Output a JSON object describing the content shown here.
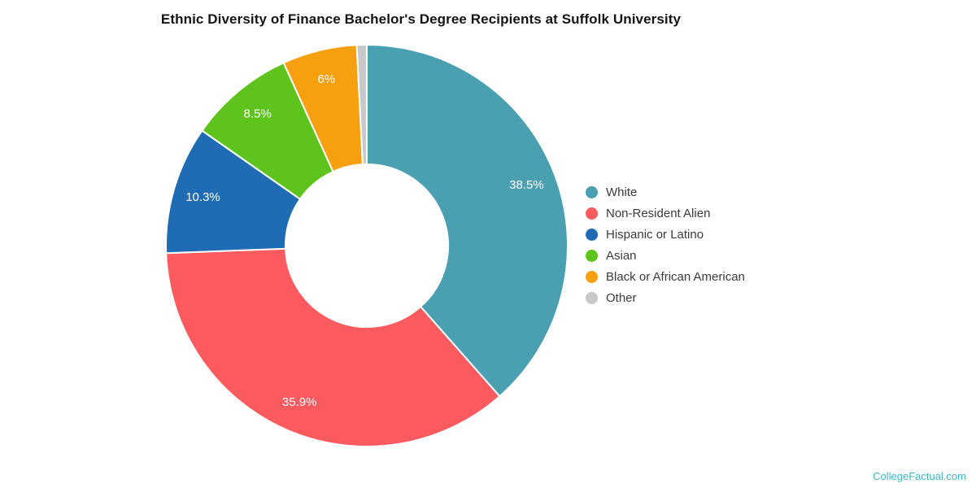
{
  "title": "Ethnic Diversity of Finance Bachelor's Degree Recipients at Suffolk University",
  "watermark": "CollegeFactual.com",
  "chart_data": {
    "type": "pie",
    "subtype": "donut",
    "title": "Ethnic Diversity of Finance Bachelor's Degree Recipients at Suffolk University",
    "categories": [
      "White",
      "Non-Resident Alien",
      "Hispanic or Latino",
      "Asian",
      "Black or African American",
      "Other"
    ],
    "values": [
      38.5,
      35.9,
      10.3,
      8.5,
      6,
      0.8
    ],
    "percent_labels": [
      "38.5%",
      "35.9%",
      "10.3%",
      "8.5%",
      "6%",
      ""
    ],
    "colors": [
      "#4a9fb0",
      "#fb5a5f",
      "#1f6cb4",
      "#5ec41d",
      "#f7a00f",
      "#c8c8c8"
    ],
    "legend_position": "right",
    "start_angle_deg": 0,
    "direction": "clockwise",
    "label_text_color": "#ffffff"
  }
}
